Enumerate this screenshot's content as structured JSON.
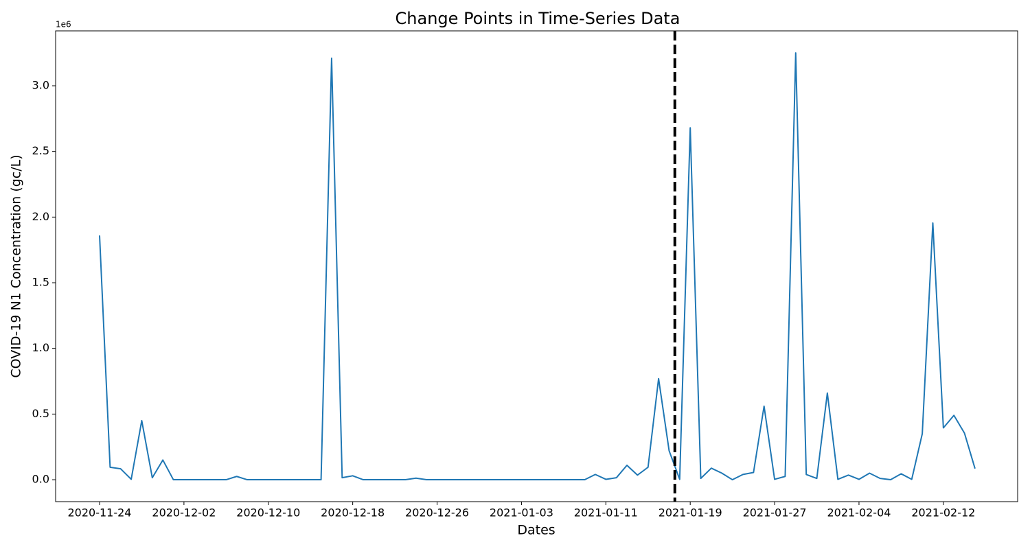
{
  "chart_data": {
    "type": "line",
    "title": "Change Points in Time-Series Data",
    "x_label": "Dates",
    "y_label": "COVID-19 N1 Concentration (gc/L)",
    "y_offset_label": "1e6",
    "x": [
      "2020-11-24",
      "2020-11-25",
      "2020-11-26",
      "2020-11-27",
      "2020-11-28",
      "2020-11-29",
      "2020-11-30",
      "2020-12-01",
      "2020-12-02",
      "2020-12-03",
      "2020-12-04",
      "2020-12-05",
      "2020-12-06",
      "2020-12-07",
      "2020-12-08",
      "2020-12-09",
      "2020-12-10",
      "2020-12-11",
      "2020-12-12",
      "2020-12-13",
      "2020-12-14",
      "2020-12-15",
      "2020-12-16",
      "2020-12-17",
      "2020-12-18",
      "2020-12-19",
      "2020-12-20",
      "2020-12-21",
      "2020-12-22",
      "2020-12-23",
      "2020-12-24",
      "2020-12-25",
      "2020-12-26",
      "2020-12-27",
      "2020-12-28",
      "2020-12-29",
      "2020-12-30",
      "2020-12-31",
      "2021-01-01",
      "2021-01-02",
      "2021-01-03",
      "2021-01-04",
      "2021-01-05",
      "2021-01-06",
      "2021-01-07",
      "2021-01-08",
      "2021-01-09",
      "2021-01-10",
      "2021-01-11",
      "2021-01-12",
      "2021-01-13",
      "2021-01-14",
      "2021-01-15",
      "2021-01-16",
      "2021-01-17",
      "2021-01-18",
      "2021-01-19",
      "2021-01-20",
      "2021-01-21",
      "2021-01-22",
      "2021-01-23",
      "2021-01-24",
      "2021-01-25",
      "2021-01-26",
      "2021-01-27",
      "2021-01-28",
      "2021-01-29",
      "2021-01-30",
      "2021-01-31",
      "2021-02-01",
      "2021-02-02",
      "2021-02-03",
      "2021-02-04",
      "2021-02-05",
      "2021-02-06",
      "2021-02-07",
      "2021-02-08",
      "2021-02-09",
      "2021-02-10",
      "2021-02-11",
      "2021-02-12",
      "2021-02-13",
      "2021-02-14",
      "2021-02-15"
    ],
    "series": [
      {
        "name": "COVID-19 N1 Concentration",
        "color": "#1f77b4",
        "values": [
          1.86,
          0.095,
          0.083,
          0.003,
          0.45,
          0.015,
          0.15,
          0,
          0,
          0,
          0,
          0,
          0,
          0.025,
          0,
          0,
          0,
          0,
          0,
          0,
          0,
          0,
          3.21,
          0.015,
          0.03,
          0,
          0,
          0,
          0,
          0,
          0.012,
          0,
          0,
          0,
          0,
          0,
          0,
          0,
          0,
          0,
          0,
          0,
          0,
          0,
          0,
          0,
          0,
          0.04,
          0.003,
          0.015,
          0.11,
          0.035,
          0.095,
          0.77,
          0.22,
          0.003,
          2.68,
          0.01,
          0.088,
          0.05,
          0,
          0.04,
          0.055,
          0.56,
          0.003,
          0.025,
          3.25,
          0.04,
          0.01,
          0.66,
          0.003,
          0.035,
          0.003,
          0.05,
          0.01,
          0,
          0.045,
          0.003,
          0.35,
          1.955,
          0.395,
          0.49,
          0.355,
          0.085
        ]
      }
    ],
    "change_points": [
      "2021-01-17T13:00"
    ],
    "change_point_color": "#000000",
    "xlim": [
      "2020-11-19T20:00",
      "2021-02-19T01:00"
    ],
    "xticks": [
      "2020-11-24",
      "2020-12-02",
      "2020-12-10",
      "2020-12-18",
      "2020-12-26",
      "2021-01-03",
      "2021-01-11",
      "2021-01-19",
      "2021-01-27",
      "2021-02-04",
      "2021-02-12"
    ],
    "ylim": [
      -0.167,
      3.418
    ],
    "yticks": [
      {
        "value": 0,
        "label": "0.0"
      },
      0.5,
      {
        "value": 1,
        "label": "1.0"
      },
      1.5,
      {
        "value": 2,
        "label": "2.0"
      },
      2.5,
      {
        "value": 3,
        "label": "3.0"
      }
    ],
    "grid": false
  }
}
